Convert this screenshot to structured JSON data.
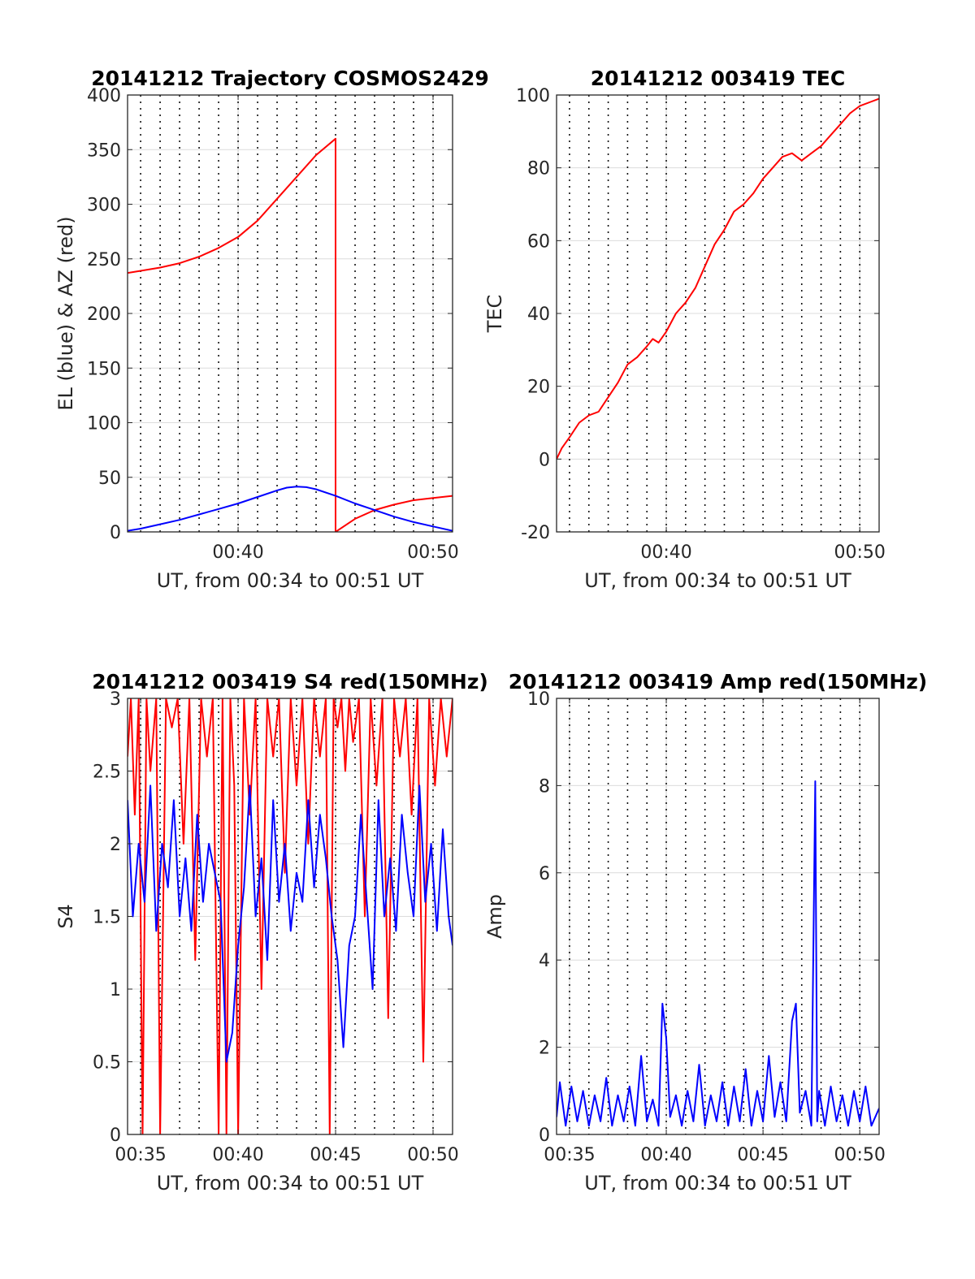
{
  "chart_data": [
    {
      "id": "traj",
      "type": "line",
      "title": "20141212 Trajectory COSMOS2429",
      "xlabel": "UT, from 00:34 to 00:51 UT",
      "ylabel": "EL (blue) & AZ (red)",
      "xlim": [
        34.33,
        51.0
      ],
      "ylim": [
        0,
        400
      ],
      "xticks": [
        {
          "v": 40,
          "label": "00:40"
        },
        {
          "v": 50,
          "label": "00:50"
        }
      ],
      "yticks": [
        {
          "v": 0,
          "label": "0"
        },
        {
          "v": 50,
          "label": "50"
        },
        {
          "v": 100,
          "label": "100"
        },
        {
          "v": 150,
          "label": "150"
        },
        {
          "v": 200,
          "label": "200"
        },
        {
          "v": 250,
          "label": "250"
        },
        {
          "v": 300,
          "label": "300"
        },
        {
          "v": 350,
          "label": "350"
        },
        {
          "v": 400,
          "label": "400"
        }
      ],
      "grid": true,
      "series": [
        {
          "color": "#ff0000",
          "x": [
            34.33,
            35.0,
            36.0,
            37.0,
            38.0,
            39.0,
            40.0,
            41.0,
            42.0,
            43.0,
            44.0,
            45.0,
            45.0,
            46.0,
            47.0,
            48.0,
            49.0,
            50.0,
            51.0
          ],
          "y": [
            237,
            239,
            242,
            246,
            252,
            260,
            270,
            285,
            305,
            325,
            345,
            360,
            0,
            12,
            20,
            25,
            29,
            31,
            33
          ]
        },
        {
          "color": "#0000ff",
          "x": [
            34.33,
            35.0,
            36.0,
            37.0,
            38.0,
            39.0,
            40.0,
            41.0,
            42.0,
            42.5,
            43.0,
            43.5,
            44.0,
            45.0,
            46.0,
            47.0,
            48.0,
            49.0,
            50.0,
            51.0
          ],
          "y": [
            1,
            3,
            7,
            11,
            16,
            21,
            26,
            32,
            38,
            40.5,
            41.5,
            41,
            39,
            33,
            26,
            20,
            14,
            9,
            5,
            1
          ]
        }
      ]
    },
    {
      "id": "tec",
      "type": "line",
      "title": "20141212 003419 TEC",
      "xlabel": "UT, from 00:34 to 00:51 UT",
      "ylabel": "TEC",
      "xlim": [
        34.33,
        51.0
      ],
      "ylim": [
        -20,
        100
      ],
      "xticks": [
        {
          "v": 40,
          "label": "00:40"
        },
        {
          "v": 50,
          "label": "00:50"
        }
      ],
      "yticks": [
        {
          "v": -20,
          "label": "-20"
        },
        {
          "v": 0,
          "label": "0"
        },
        {
          "v": 20,
          "label": "20"
        },
        {
          "v": 40,
          "label": "40"
        },
        {
          "v": 60,
          "label": "60"
        },
        {
          "v": 80,
          "label": "80"
        },
        {
          "v": 100,
          "label": "100"
        }
      ],
      "grid": true,
      "series": [
        {
          "color": "#ff0000",
          "x": [
            34.33,
            34.6,
            35.0,
            35.5,
            36.0,
            36.5,
            37.0,
            37.5,
            38.0,
            38.5,
            39.0,
            39.3,
            39.6,
            40.0,
            40.5,
            41.0,
            41.5,
            42.0,
            42.5,
            43.0,
            43.5,
            44.0,
            44.5,
            45.0,
            45.5,
            46.0,
            46.5,
            47.0,
            47.5,
            48.0,
            48.5,
            49.0,
            49.5,
            50.0,
            50.5,
            51.0
          ],
          "y": [
            0,
            3,
            6,
            10,
            12,
            13,
            17,
            21,
            26,
            28,
            31,
            33,
            32,
            35,
            40,
            43,
            47,
            53,
            59,
            63,
            68,
            70,
            73,
            77,
            80,
            83,
            84,
            82,
            84,
            86,
            89,
            92,
            95,
            97,
            98,
            99
          ]
        }
      ]
    },
    {
      "id": "s4",
      "type": "line",
      "title": "20141212 003419 S4 red(150MHz)",
      "xlabel": "UT, from 00:34 to 00:51 UT",
      "ylabel": "S4",
      "xlim": [
        34.33,
        51.0
      ],
      "ylim": [
        0,
        3
      ],
      "xticks": [
        {
          "v": 35,
          "label": "00:35"
        },
        {
          "v": 40,
          "label": "00:40"
        },
        {
          "v": 45,
          "label": "00:45"
        },
        {
          "v": 50,
          "label": "00:50"
        }
      ],
      "yticks": [
        {
          "v": 0,
          "label": "0"
        },
        {
          "v": 0.5,
          "label": "0.5"
        },
        {
          "v": 1,
          "label": "1"
        },
        {
          "v": 1.5,
          "label": "1.5"
        },
        {
          "v": 2,
          "label": "2"
        },
        {
          "v": 2.5,
          "label": "2.5"
        },
        {
          "v": 3,
          "label": "3"
        }
      ],
      "grid": true,
      "series": [
        {
          "color": "#ff0000",
          "x": [
            34.33,
            34.5,
            34.7,
            34.9,
            35.1,
            35.3,
            35.5,
            35.8,
            36.0,
            36.3,
            36.6,
            36.9,
            37.2,
            37.5,
            37.8,
            38.1,
            38.4,
            38.7,
            39.0,
            39.2,
            39.4,
            39.6,
            39.8,
            40.0,
            40.3,
            40.6,
            40.9,
            41.2,
            41.5,
            41.8,
            42.1,
            42.4,
            42.7,
            43.0,
            43.3,
            43.6,
            43.9,
            44.2,
            44.5,
            44.7,
            44.9,
            45.1,
            45.3,
            45.5,
            45.7,
            45.9,
            46.2,
            46.5,
            46.8,
            47.1,
            47.4,
            47.7,
            48.0,
            48.3,
            48.6,
            48.9,
            49.2,
            49.5,
            49.8,
            50.1,
            50.4,
            50.7,
            51.0
          ],
          "y": [
            2.6,
            3.0,
            2.2,
            3.0,
            0.0,
            3.0,
            2.5,
            3.0,
            0.0,
            3.0,
            2.8,
            3.0,
            2.0,
            3.0,
            1.2,
            3.0,
            2.6,
            3.0,
            0.0,
            3.0,
            0.0,
            3.0,
            2.4,
            0.0,
            3.0,
            2.2,
            3.0,
            1.0,
            3.0,
            2.6,
            3.0,
            1.8,
            3.0,
            2.4,
            3.0,
            2.0,
            3.0,
            2.6,
            3.0,
            0.0,
            3.0,
            2.8,
            3.0,
            2.5,
            3.0,
            2.7,
            3.0,
            1.5,
            3.0,
            2.4,
            3.0,
            0.8,
            3.0,
            2.6,
            3.0,
            2.2,
            3.0,
            0.5,
            3.0,
            2.4,
            3.0,
            2.6,
            3.0
          ]
        },
        {
          "color": "#0000ff",
          "x": [
            34.33,
            34.6,
            34.9,
            35.2,
            35.5,
            35.8,
            36.1,
            36.4,
            36.7,
            37.0,
            37.3,
            37.6,
            37.9,
            38.2,
            38.5,
            38.8,
            39.1,
            39.4,
            39.7,
            40.0,
            40.3,
            40.6,
            40.9,
            41.2,
            41.5,
            41.8,
            42.1,
            42.4,
            42.7,
            43.0,
            43.3,
            43.6,
            43.9,
            44.2,
            44.5,
            44.8,
            45.1,
            45.4,
            45.7,
            46.0,
            46.3,
            46.6,
            46.9,
            47.2,
            47.5,
            47.8,
            48.1,
            48.4,
            48.7,
            49.0,
            49.3,
            49.6,
            49.9,
            50.2,
            50.5,
            50.8,
            51.0
          ],
          "y": [
            2.3,
            1.5,
            2.0,
            1.6,
            2.4,
            1.4,
            2.0,
            1.7,
            2.3,
            1.5,
            1.9,
            1.4,
            2.2,
            1.6,
            2.0,
            1.8,
            1.6,
            0.5,
            0.7,
            1.3,
            1.7,
            2.4,
            1.5,
            1.9,
            1.2,
            2.3,
            1.6,
            2.0,
            1.4,
            1.8,
            1.6,
            2.3,
            1.7,
            2.2,
            1.9,
            1.5,
            1.2,
            0.6,
            1.3,
            1.5,
            2.2,
            1.6,
            1.0,
            2.3,
            1.5,
            1.9,
            1.4,
            2.2,
            1.8,
            1.5,
            2.4,
            1.6,
            2.0,
            1.4,
            2.1,
            1.5,
            1.3
          ]
        }
      ]
    },
    {
      "id": "amp",
      "type": "line",
      "title": "20141212 003419 Amp red(150MHz)",
      "xlabel": "UT, from 00:34 to 00:51 UT",
      "ylabel": "Amp",
      "xlim": [
        34.33,
        51.0
      ],
      "ylim": [
        0,
        10
      ],
      "xticks": [
        {
          "v": 35,
          "label": "00:35"
        },
        {
          "v": 40,
          "label": "00:40"
        },
        {
          "v": 45,
          "label": "00:45"
        },
        {
          "v": 50,
          "label": "00:50"
        }
      ],
      "yticks": [
        {
          "v": 0,
          "label": "0"
        },
        {
          "v": 2,
          "label": "2"
        },
        {
          "v": 4,
          "label": "4"
        },
        {
          "v": 6,
          "label": "6"
        },
        {
          "v": 8,
          "label": "8"
        },
        {
          "v": 10,
          "label": "10"
        }
      ],
      "grid": true,
      "series": [
        {
          "color": "#0000ff",
          "x": [
            34.33,
            34.5,
            34.8,
            35.1,
            35.4,
            35.7,
            36.0,
            36.3,
            36.6,
            36.9,
            37.2,
            37.5,
            37.8,
            38.1,
            38.4,
            38.7,
            39.0,
            39.3,
            39.6,
            39.8,
            40.0,
            40.2,
            40.5,
            40.8,
            41.1,
            41.4,
            41.7,
            42.0,
            42.3,
            42.6,
            42.9,
            43.2,
            43.5,
            43.8,
            44.1,
            44.4,
            44.7,
            45.0,
            45.3,
            45.6,
            45.9,
            46.2,
            46.5,
            46.7,
            46.9,
            47.2,
            47.5,
            47.7,
            47.8,
            47.9,
            48.2,
            48.5,
            48.8,
            49.1,
            49.4,
            49.7,
            50.0,
            50.3,
            50.6,
            51.0
          ],
          "y": [
            0.4,
            1.2,
            0.2,
            1.1,
            0.3,
            1.0,
            0.2,
            0.9,
            0.3,
            1.3,
            0.2,
            0.9,
            0.3,
            1.1,
            0.2,
            1.8,
            0.3,
            0.8,
            0.2,
            3.0,
            2.2,
            0.4,
            0.9,
            0.2,
            1.0,
            0.3,
            1.6,
            0.2,
            0.9,
            0.3,
            1.2,
            0.2,
            1.1,
            0.3,
            1.5,
            0.2,
            1.0,
            0.3,
            1.8,
            0.4,
            1.2,
            0.3,
            2.6,
            3.0,
            0.5,
            1.0,
            0.2,
            8.1,
            0.3,
            1.0,
            0.2,
            1.1,
            0.3,
            0.9,
            0.2,
            1.0,
            0.3,
            1.1,
            0.2,
            0.6
          ]
        }
      ]
    }
  ]
}
